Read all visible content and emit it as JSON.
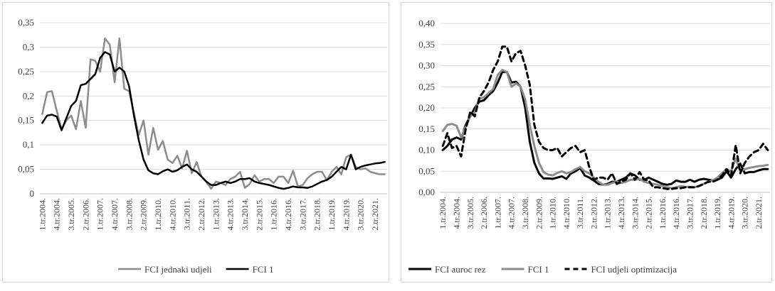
{
  "chart_data": [
    {
      "type": "line",
      "title": "",
      "xlabel": "",
      "ylabel": "",
      "ylim": [
        0,
        0.35
      ],
      "yticks": [
        0,
        0.05,
        0.1,
        0.15,
        0.2,
        0.25,
        0.3,
        0.35
      ],
      "ytick_labels": [
        "0",
        "0,05",
        "0,1",
        "0,15",
        "0,2",
        "0,25",
        "0,3",
        "0,35"
      ],
      "grid": "horizontal",
      "legend": "bottom",
      "x_tick_labels": [
        "1.tr.2004.",
        "4.tr.2004.",
        "3.tr.2005.",
        "2.tr.2006.",
        "1.tr.2007.",
        "4.tr.2007.",
        "3.tr.2008.",
        "2.tr.2009.",
        "1.tr.2010.",
        "4.tr.2010.",
        "3.tr.2011.",
        "2.tr.2012.",
        "1.tr.2013.",
        "4.tr.2013.",
        "3.tr.2014.",
        "2.tr.2015.",
        "1.tr.2016.",
        "4.tr.2016.",
        "3.tr.2017.",
        "2.tr.2018.",
        "1.tr.2019.",
        "4.tr.2019.",
        "3.tr.2020.",
        "2.tr.2021."
      ],
      "x_count": 72,
      "series": [
        {
          "name": "FCI jednaki udjeli",
          "color": "#8c8c8c",
          "dash": "solid",
          "values": [
            0.163,
            0.208,
            0.21,
            0.17,
            0.132,
            0.15,
            0.16,
            0.132,
            0.19,
            0.135,
            0.275,
            0.272,
            0.25,
            0.318,
            0.305,
            0.228,
            0.318,
            0.215,
            0.21,
            0.165,
            0.12,
            0.15,
            0.08,
            0.135,
            0.09,
            0.108,
            0.07,
            0.063,
            0.078,
            0.052,
            0.088,
            0.042,
            0.065,
            0.035,
            0.025,
            0.01,
            0.025,
            0.022,
            0.018,
            0.03,
            0.035,
            0.045,
            0.012,
            0.02,
            0.038,
            0.025,
            0.03,
            0.03,
            0.022,
            0.035,
            0.035,
            0.022,
            0.047,
            0.015,
            0.018,
            0.032,
            0.04,
            0.045,
            0.045,
            0.028,
            0.045,
            0.055,
            0.04,
            0.075,
            0.08,
            0.055,
            0.05,
            0.052,
            0.045,
            0.042,
            0.04,
            0.04
          ]
        },
        {
          "name": "FCI 1",
          "color": "#000000",
          "dash": "solid",
          "values": [
            0.145,
            0.16,
            0.162,
            0.158,
            0.13,
            0.155,
            0.18,
            0.19,
            0.222,
            0.225,
            0.235,
            0.245,
            0.278,
            0.29,
            0.285,
            0.25,
            0.258,
            0.25,
            0.22,
            0.16,
            0.11,
            0.07,
            0.048,
            0.042,
            0.04,
            0.046,
            0.05,
            0.045,
            0.048,
            0.055,
            0.06,
            0.05,
            0.045,
            0.035,
            0.025,
            0.018,
            0.018,
            0.022,
            0.025,
            0.022,
            0.025,
            0.03,
            0.03,
            0.032,
            0.025,
            0.022,
            0.02,
            0.018,
            0.015,
            0.012,
            0.01,
            0.012,
            0.015,
            0.013,
            0.013,
            0.012,
            0.015,
            0.02,
            0.025,
            0.028,
            0.035,
            0.045,
            0.055,
            0.05,
            0.08,
            0.05,
            0.055,
            0.058,
            0.06,
            0.062,
            0.063,
            0.065
          ]
        }
      ]
    },
    {
      "type": "line",
      "title": "",
      "xlabel": "",
      "ylabel": "",
      "ylim": [
        0,
        0.4
      ],
      "yticks": [
        0,
        0.05,
        0.1,
        0.15,
        0.2,
        0.25,
        0.3,
        0.35,
        0.4
      ],
      "ytick_labels": [
        "0,00",
        "0,05",
        "0,10",
        "0,15",
        "0,20",
        "0,25",
        "0,30",
        "0,35",
        "0,40"
      ],
      "grid": "horizontal",
      "legend": "bottom",
      "x_tick_labels": [
        "1.tr.2004.",
        "4.tr.2004.",
        "3.tr.2005.",
        "2.tr.2006.",
        "1.tr.2007.",
        "4.tr.2007.",
        "3.tr.2008.",
        "2.tr.2009.",
        "1.tr.2010.",
        "4.tr.2010.",
        "3.tr.2011.",
        "2.tr.2012.",
        "1.tr.2013.",
        "4.tr.2013.",
        "3.tr.2014.",
        "2.tr.2015.",
        "1.tr.2016.",
        "4.tr.2016.",
        "3.tr.2017.",
        "2.tr.2018.",
        "1.tr.2019.",
        "4.tr.2019.",
        "3.tr.2020.",
        "2.tr.2021."
      ],
      "x_count": 72,
      "series": [
        {
          "name": "FCI auroc rez",
          "color": "#000000",
          "dash": "solid",
          "values": [
            0.1,
            0.11,
            0.125,
            0.13,
            0.125,
            0.16,
            0.18,
            0.2,
            0.215,
            0.218,
            0.23,
            0.24,
            0.26,
            0.285,
            0.285,
            0.26,
            0.262,
            0.25,
            0.2,
            0.12,
            0.07,
            0.045,
            0.033,
            0.033,
            0.032,
            0.035,
            0.038,
            0.032,
            0.045,
            0.05,
            0.058,
            0.04,
            0.035,
            0.028,
            0.02,
            0.018,
            0.02,
            0.025,
            0.025,
            0.03,
            0.035,
            0.045,
            0.04,
            0.03,
            0.03,
            0.035,
            0.03,
            0.025,
            0.02,
            0.018,
            0.02,
            0.028,
            0.025,
            0.025,
            0.03,
            0.025,
            0.03,
            0.032,
            0.03,
            0.028,
            0.03,
            0.035,
            0.05,
            0.035,
            0.055,
            0.068,
            0.045,
            0.048,
            0.048,
            0.052,
            0.055,
            0.055
          ]
        },
        {
          "name": "FCI 1",
          "color": "#8c8c8c",
          "dash": "solid",
          "values": [
            0.145,
            0.16,
            0.162,
            0.158,
            0.13,
            0.155,
            0.18,
            0.19,
            0.222,
            0.225,
            0.235,
            0.245,
            0.278,
            0.29,
            0.285,
            0.25,
            0.258,
            0.25,
            0.22,
            0.16,
            0.11,
            0.07,
            0.048,
            0.042,
            0.04,
            0.046,
            0.05,
            0.045,
            0.048,
            0.055,
            0.06,
            0.05,
            0.045,
            0.035,
            0.025,
            0.018,
            0.018,
            0.022,
            0.025,
            0.022,
            0.025,
            0.03,
            0.03,
            0.032,
            0.025,
            0.022,
            0.02,
            0.018,
            0.015,
            0.012,
            0.01,
            0.012,
            0.015,
            0.013,
            0.013,
            0.012,
            0.015,
            0.02,
            0.025,
            0.028,
            0.035,
            0.045,
            0.055,
            0.05,
            0.08,
            0.05,
            0.055,
            0.058,
            0.06,
            0.062,
            0.063,
            0.065
          ]
        },
        {
          "name": "FCI udjeli optimizacija",
          "color": "#000000",
          "dash": "dashed",
          "values": [
            0.11,
            0.14,
            0.105,
            0.11,
            0.085,
            0.15,
            0.19,
            0.18,
            0.225,
            0.24,
            0.26,
            0.29,
            0.31,
            0.345,
            0.345,
            0.31,
            0.33,
            0.335,
            0.3,
            0.255,
            0.16,
            0.12,
            0.105,
            0.1,
            0.1,
            0.105,
            0.085,
            0.095,
            0.105,
            0.11,
            0.095,
            0.1,
            0.06,
            0.03,
            0.035,
            0.035,
            0.03,
            0.045,
            0.02,
            0.025,
            0.03,
            0.045,
            0.03,
            0.048,
            0.03,
            0.028,
            0.012,
            0.012,
            0.01,
            0.008,
            0.008,
            0.01,
            0.01,
            0.012,
            0.012,
            0.012,
            0.015,
            0.02,
            0.025,
            0.025,
            0.03,
            0.04,
            0.055,
            0.04,
            0.112,
            0.045,
            0.07,
            0.085,
            0.095,
            0.1,
            0.115,
            0.1
          ]
        }
      ]
    }
  ]
}
